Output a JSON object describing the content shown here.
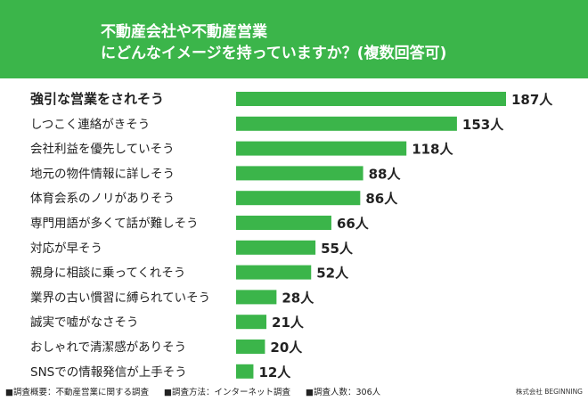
{
  "title": {
    "line1": "不動産会社や不動産営業",
    "line2": "にどんなイメージを持っていますか？(複数回答可)"
  },
  "colors": {
    "header": "#3bb54a",
    "bar": "#3bb54a",
    "highlight": "#d32f2f",
    "text": "#222222"
  },
  "chart_data": {
    "type": "bar",
    "orientation": "horizontal",
    "unit": "人",
    "categories": [
      "強引な営業をされそう",
      "しつこく連絡がきそう",
      "会社利益を優先していそう",
      "地元の物件情報に詳しそう",
      "体育会系のノリがありそう",
      "専門用語が多くて話が難しそう",
      "対応が早そう",
      "親身に相談に乗ってくれそう",
      "業界の古い慣習に縛られていそう",
      "誠実で嘘がなさそう",
      "おしゃれで清潔感がありそう",
      "SNSでの情報発信が上手そう"
    ],
    "values": [
      187,
      153,
      118,
      88,
      86,
      66,
      55,
      52,
      28,
      21,
      20,
      12
    ],
    "highlight_index": 0,
    "xlim": [
      0,
      187
    ]
  },
  "footer": {
    "notes": [
      "■調査概要：不動産営業に関する調査",
      "■調査方法：インターネット調査",
      "■調査人数：306人"
    ],
    "company": "株式会社 BEGINNING"
  }
}
